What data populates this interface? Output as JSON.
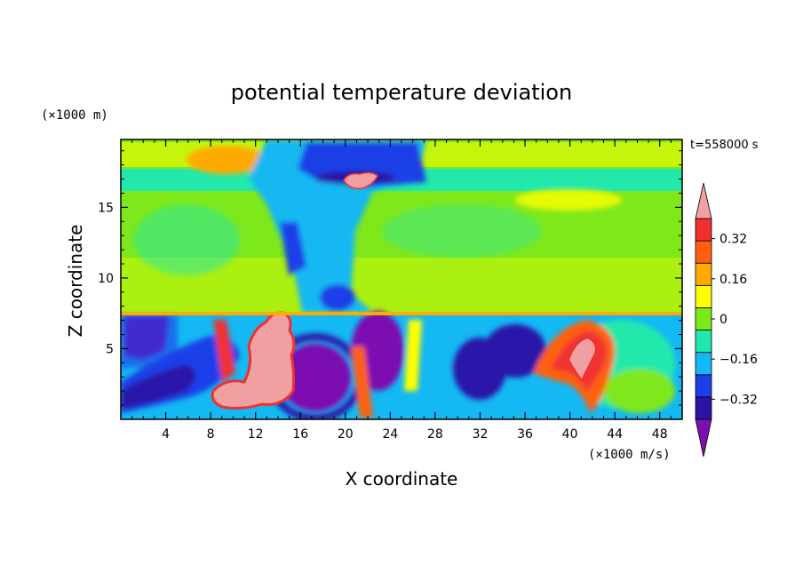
{
  "chart_data": {
    "type": "heatmap",
    "title": "potential temperature deviation",
    "xlabel": "X coordinate",
    "ylabel": "Z coordinate",
    "x_unit": "(×1000 m/s)",
    "y_unit": "(×1000 m)",
    "time_label": "t=558000 s",
    "xlim": [
      0,
      50
    ],
    "ylim": [
      0,
      19.8
    ],
    "x_ticks": [
      4,
      8,
      12,
      16,
      20,
      24,
      28,
      32,
      36,
      40,
      44,
      48
    ],
    "y_ticks": [
      5,
      10,
      15
    ],
    "colorbar": {
      "labels": [
        "0.32",
        "0.16",
        "0",
        "−0.16",
        "−0.32"
      ],
      "label_values": [
        0.32,
        0.16,
        0,
        -0.16,
        -0.32
      ],
      "levels": [
        -0.4,
        -0.32,
        -0.24,
        -0.16,
        -0.08,
        0,
        0.08,
        0.16,
        0.24,
        0.32,
        0.4
      ],
      "colors": [
        "#7b0fb0",
        "#2b13a8",
        "#1c3fe8",
        "#14b8f2",
        "#23e8ac",
        "#7fe81a",
        "#ffff00",
        "#ffaa00",
        "#ff6010",
        "#f03030",
        "#f0a0a0"
      ]
    },
    "features": [
      {
        "label": "positive anomaly",
        "x": [
          10,
          15
        ],
        "z": [
          0.5,
          7.5
        ],
        "value": 0.45
      },
      {
        "label": "positive anomaly",
        "x": [
          40,
          42
        ],
        "z": [
          2,
          6
        ],
        "value": 0.45
      },
      {
        "label": "positive anomaly",
        "x": [
          20,
          22
        ],
        "z": [
          16.5,
          17.5
        ],
        "value": 0.45
      },
      {
        "label": "negative anomaly",
        "x": [
          15,
          20
        ],
        "z": [
          1,
          5
        ],
        "value": -0.45
      },
      {
        "label": "negative anomaly",
        "x": [
          21,
          25
        ],
        "z": [
          3,
          7
        ],
        "value": -0.45
      },
      {
        "label": "negative anomaly",
        "x": [
          0,
          3
        ],
        "z": [
          4,
          7.5
        ],
        "value": -0.45
      },
      {
        "label": "cool upper region",
        "x": [
          17,
          27
        ],
        "z": [
          16,
          19.8
        ],
        "value": -0.3
      },
      {
        "label": "warm upper band",
        "x": [
          3,
          9
        ],
        "z": [
          17.5,
          19.8
        ],
        "value": 0.2
      }
    ]
  }
}
